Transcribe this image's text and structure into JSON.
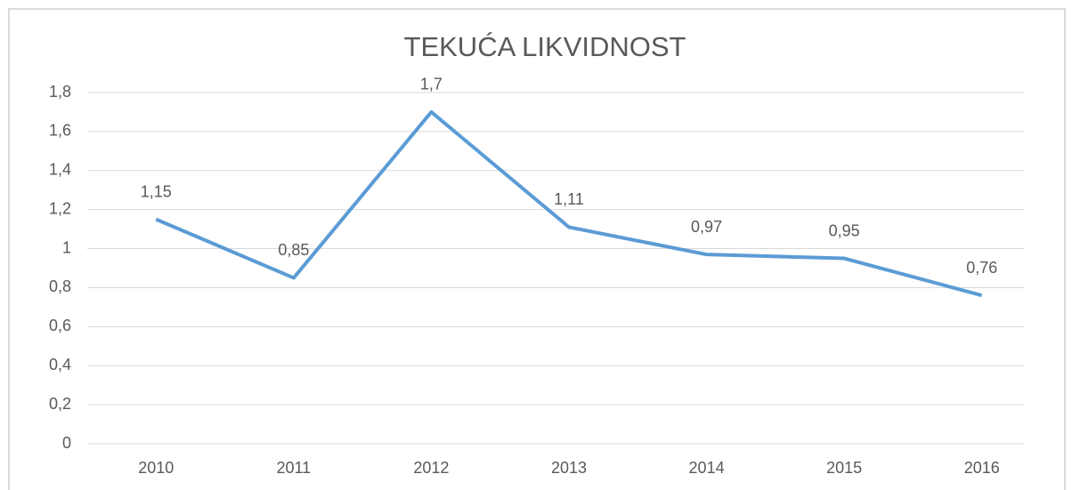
{
  "chart_data": {
    "type": "line",
    "title": "TEKUĆA LIKVIDNOST",
    "categories": [
      "2010",
      "2011",
      "2012",
      "2013",
      "2014",
      "2015",
      "2016"
    ],
    "series": [
      {
        "name": "Tekuća likvidnost",
        "color": "#5b9bd5",
        "values": [
          1.15,
          0.85,
          1.7,
          1.11,
          0.97,
          0.95,
          0.76
        ],
        "value_labels": [
          "1,15",
          "0,85",
          "1,7",
          "1,11",
          "0,97",
          "0,95",
          "0,76"
        ]
      }
    ],
    "ylim": [
      0,
      1.8
    ],
    "yticks": [
      0,
      {
        "value": 0.2,
        "label": "0,2"
      },
      {
        "value": 0.4,
        "label": "0,4"
      },
      {
        "value": 0.6,
        "label": "0,6"
      },
      {
        "value": 0.8,
        "label": "0,8"
      },
      1,
      {
        "value": 1.2,
        "label": "1,2"
      },
      {
        "value": 1.4,
        "label": "1,4"
      },
      {
        "value": 1.6,
        "label": "1,6"
      },
      {
        "value": 1.8,
        "label": "1,8"
      }
    ],
    "grid": true
  }
}
